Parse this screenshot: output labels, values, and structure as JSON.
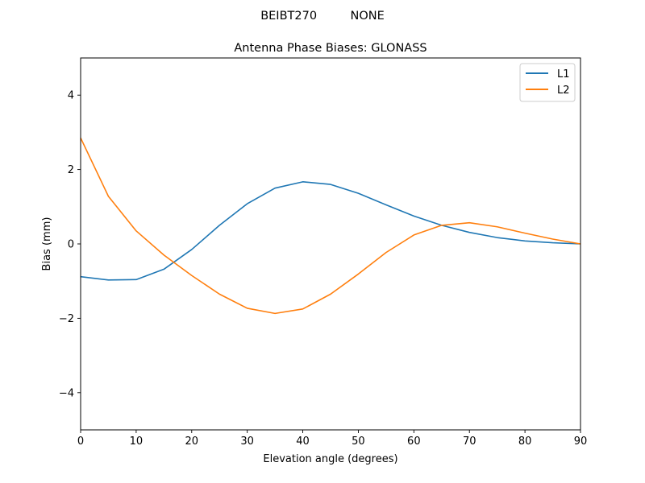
{
  "chart_data": {
    "type": "line",
    "suptitle": "BEIBT270         NONE",
    "title": "Antenna Phase Biases: GLONASS",
    "xlabel": "Elevation angle (degrees)",
    "ylabel": "Bias (mm)",
    "xlim": [
      0,
      90
    ],
    "ylim": [
      -5,
      5
    ],
    "xticks": [
      0,
      10,
      20,
      30,
      40,
      50,
      60,
      70,
      80,
      90
    ],
    "yticks": [
      -4,
      -2,
      0,
      2,
      4
    ],
    "ytick_labels": [
      "−4",
      "−2",
      "0",
      "2",
      "4"
    ],
    "grid": false,
    "legend_position": "top-right",
    "x": [
      0,
      5,
      10,
      15,
      20,
      25,
      30,
      35,
      40,
      45,
      50,
      55,
      60,
      65,
      70,
      75,
      80,
      85,
      90
    ],
    "series": [
      {
        "name": "L1",
        "color": "#1f77b4",
        "values": [
          -0.88,
          -0.97,
          -0.96,
          -0.68,
          -0.15,
          0.5,
          1.08,
          1.5,
          1.67,
          1.6,
          1.36,
          1.05,
          0.75,
          0.5,
          0.31,
          0.17,
          0.08,
          0.03,
          0.0
        ]
      },
      {
        "name": "L2",
        "color": "#ff7f0e",
        "values": [
          2.85,
          1.28,
          0.35,
          -0.3,
          -0.85,
          -1.35,
          -1.73,
          -1.87,
          -1.75,
          -1.35,
          -0.81,
          -0.23,
          0.24,
          0.5,
          0.57,
          0.46,
          0.29,
          0.13,
          0.0
        ]
      }
    ]
  }
}
